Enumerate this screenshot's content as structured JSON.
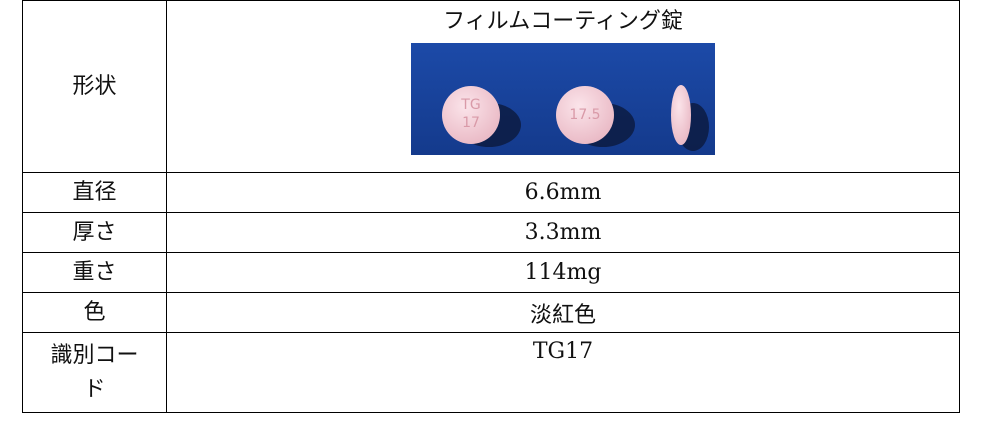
{
  "table": {
    "rows": [
      [
        "形状",
        "フィルムコーティング錠"
      ],
      [
        "直径",
        "6.6mm"
      ],
      [
        "厚さ",
        "3.3mm"
      ],
      [
        "重さ",
        "114mg"
      ],
      [
        "色",
        "淡紅色"
      ],
      [
        "識別コード",
        "TG17"
      ]
    ]
  },
  "image": {
    "imprints": [
      "TG",
      "17",
      "17.5"
    ]
  }
}
